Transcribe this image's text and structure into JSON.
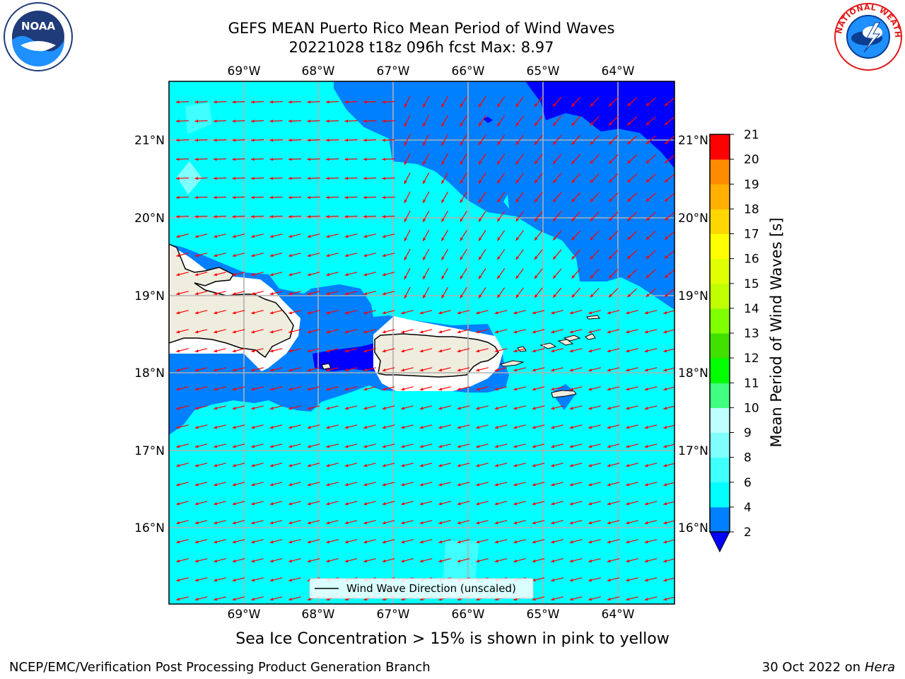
{
  "header": {
    "title_line1": "GEFS MEAN Puerto Rico Mean Period of Wind Waves",
    "title_line2": "20221028 t18z 096h fcst   Max: 8.97"
  },
  "map": {
    "lon_labels": [
      "69°W",
      "68°W",
      "67°W",
      "66°W",
      "65°W",
      "64°W"
    ],
    "lat_labels": [
      "21°N",
      "20°N",
      "19°N",
      "18°N",
      "17°N",
      "16°N"
    ],
    "legend_label": "Wind Wave Direction (unscaled)",
    "colors": {
      "ocean_light": "#00ffff",
      "ocean_mid": "#007fff",
      "ocean_dark": "#0000ff",
      "land": "#efedde",
      "arrow": "#ff0000",
      "grid": "#b0b0b0"
    }
  },
  "colorbar": {
    "label": "Mean Period of Wind Waves [s]",
    "ticks": [
      "2",
      "4",
      "6",
      "8",
      "9",
      "10",
      "11",
      "12",
      "13",
      "14",
      "15",
      "16",
      "17",
      "18",
      "19",
      "20",
      "21"
    ],
    "under_color": "#0000ff",
    "colors": [
      "#007fff",
      "#00ffff",
      "#40ffff",
      "#7fffff",
      "#bfffff",
      "#40ff80",
      "#00ff00",
      "#40e000",
      "#80ff00",
      "#c0ff00",
      "#e0ff00",
      "#ffff00",
      "#ffd700",
      "#ffb000",
      "#ff8c00",
      "#ff5000",
      "#ff2000",
      "#ff0000"
    ]
  },
  "footer": {
    "ice_note": "Sea Ice Concentration > 15% is shown in pink to yellow",
    "left": "NCEP/EMC/Verification Post Processing Product Generation Branch",
    "right_date": "30 Oct 2022 on ",
    "right_machine": "Hera"
  },
  "logos": {
    "noaa_text": "NOAA",
    "nws_text": "NATIONAL WEATHER SERVICE"
  }
}
